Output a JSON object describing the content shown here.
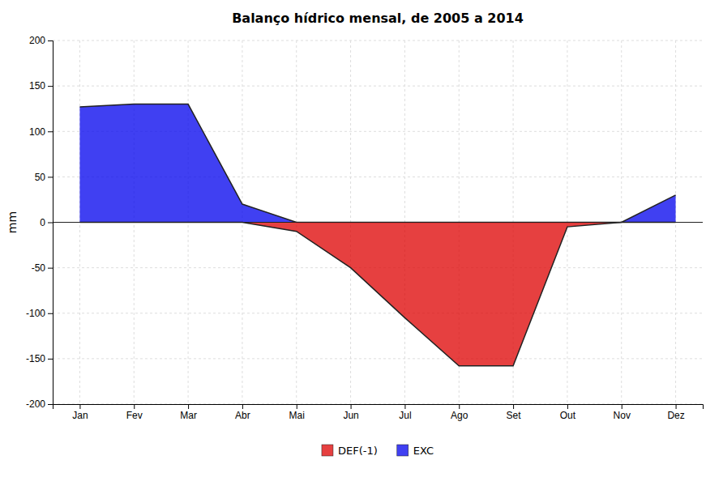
{
  "chart_data": {
    "type": "area",
    "title": "Balanço hídrico mensal, de 2005 a 2014",
    "ylabel": "mm",
    "categories": [
      "Jan",
      "Fev",
      "Mar",
      "Abr",
      "Mai",
      "Jun",
      "Jul",
      "Ago",
      "Set",
      "Out",
      "Nov",
      "Dez"
    ],
    "series": [
      {
        "name": "EXC",
        "color": "#0000EE",
        "values": [
          127,
          130,
          130,
          20,
          0,
          0,
          0,
          0,
          0,
          0,
          0,
          30
        ]
      },
      {
        "name": "DEF(-1)",
        "color": "#DD0000",
        "values": [
          0,
          0,
          0,
          0,
          -10,
          -50,
          -105,
          -158,
          -158,
          -5,
          0,
          0
        ]
      }
    ],
    "ylim": [
      -200,
      200
    ],
    "yticks": [
      -200,
      -150,
      -100,
      -50,
      0,
      50,
      100,
      150,
      200
    ],
    "grid": true,
    "legend": "bottom"
  }
}
